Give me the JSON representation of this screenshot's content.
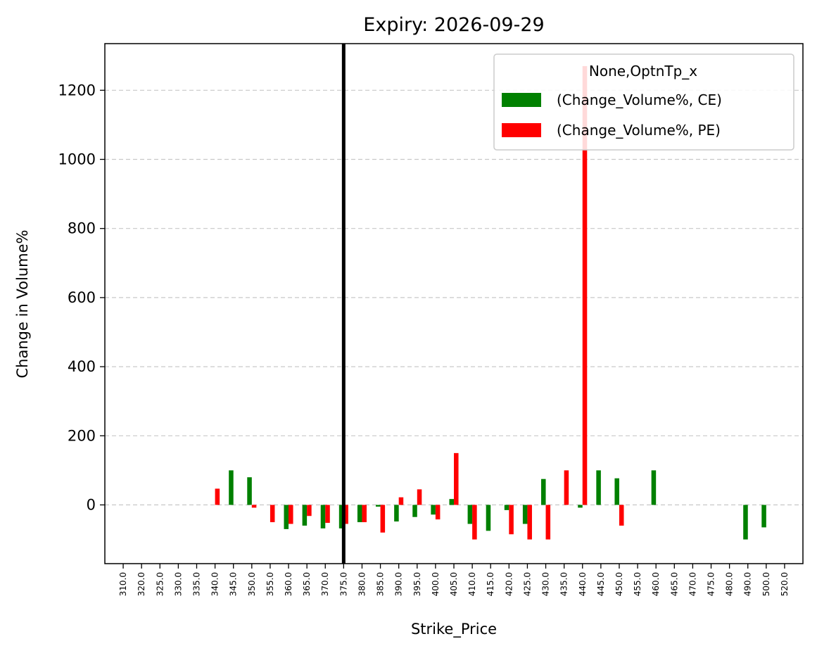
{
  "chart_data": {
    "type": "bar",
    "title": "Expiry: 2026-09-29",
    "xlabel": "Strike_Price",
    "ylabel": "Change in Volume%",
    "categories": [
      "310.0",
      "320.0",
      "325.0",
      "330.0",
      "335.0",
      "340.0",
      "345.0",
      "350.0",
      "355.0",
      "360.0",
      "365.0",
      "370.0",
      "375.0",
      "380.0",
      "385.0",
      "390.0",
      "395.0",
      "400.0",
      "405.0",
      "410.0",
      "415.0",
      "420.0",
      "425.0",
      "430.0",
      "435.0",
      "440.0",
      "445.0",
      "450.0",
      "455.0",
      "460.0",
      "465.0",
      "470.0",
      "475.0",
      "480.0",
      "490.0",
      "500.0",
      "520.0"
    ],
    "series": [
      {
        "name": "(Change_Volume%, CE)",
        "color": "#008000",
        "values": [
          0,
          0,
          0,
          0,
          0,
          0,
          100,
          80,
          0,
          -70,
          -60,
          -68,
          -68,
          -50,
          -5,
          -48,
          -35,
          -28,
          17,
          -55,
          -75,
          -15,
          -55,
          75,
          0,
          -8,
          100,
          77,
          0,
          100,
          0,
          0,
          0,
          0,
          -100,
          -65,
          0
        ]
      },
      {
        "name": "(Change_Volume%, PE)",
        "color": "#ff0000",
        "values": [
          0,
          0,
          0,
          0,
          0,
          47,
          0,
          -8,
          -50,
          -55,
          -32,
          -52,
          -55,
          -50,
          -80,
          22,
          45,
          -42,
          150,
          -100,
          0,
          -85,
          -100,
          -100,
          100,
          1270,
          0,
          -60,
          0,
          0,
          0,
          0,
          0,
          0,
          0,
          0,
          0
        ]
      }
    ],
    "ylim": [
      -170,
      1335
    ],
    "yticks": [
      0,
      200,
      400,
      600,
      800,
      1000,
      1200
    ],
    "ytick_labels": [
      "0",
      "200",
      "400",
      "600",
      "800",
      "1000",
      "1200"
    ],
    "vline_category": "375.0",
    "vline_color": "#000000",
    "grid": "y-dashed",
    "legend": {
      "title": "None,OptnTp_x",
      "placement": "top-right"
    }
  }
}
